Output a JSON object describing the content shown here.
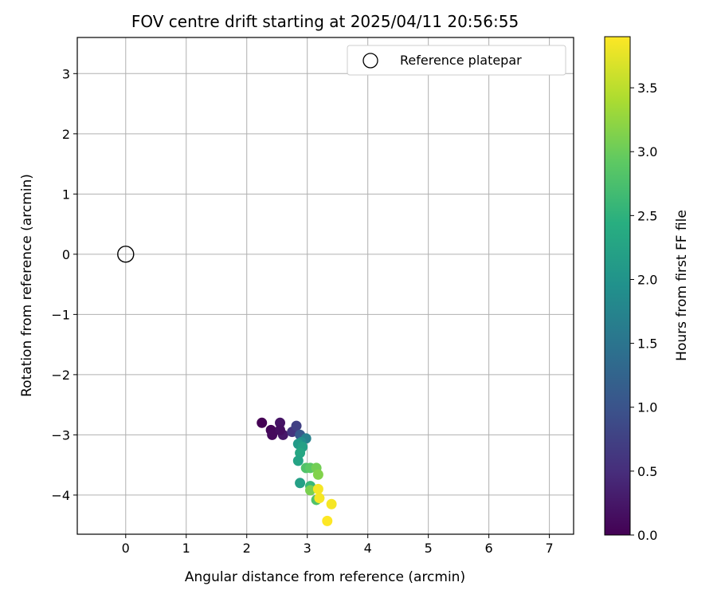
{
  "chart_data": {
    "type": "scatter",
    "title": "FOV centre drift starting at 2025/04/11 20:56:55",
    "xlabel": "Angular distance from reference (arcmin)",
    "ylabel": "Rotation from reference (arcmin)",
    "xlim": [
      -0.8,
      7.4
    ],
    "ylim": [
      -4.65,
      3.6
    ],
    "xticks": [
      "0",
      "1",
      "2",
      "3",
      "4",
      "5",
      "6",
      "7"
    ],
    "yticks": [
      "−4",
      "−3",
      "−2",
      "−1",
      "0",
      "1",
      "2",
      "3"
    ],
    "grid": true,
    "legend": {
      "position": "top-right",
      "label": "Reference platepar"
    },
    "reference_point": {
      "x": 0,
      "y": 0
    },
    "colorbar": {
      "label": "Hours from first FF file",
      "range": [
        0.0,
        3.9
      ],
      "ticks": [
        "0.0",
        "0.5",
        "1.0",
        "1.5",
        "2.0",
        "2.5",
        "3.0",
        "3.5"
      ],
      "colormap": "viridis"
    },
    "series": [
      {
        "points": [
          {
            "x": 2.25,
            "y": -2.8,
            "c": 0.0
          },
          {
            "x": 2.4,
            "y": -2.92,
            "c": 0.05
          },
          {
            "x": 2.42,
            "y": -3.0,
            "c": 0.1
          },
          {
            "x": 2.55,
            "y": -2.8,
            "c": 0.2
          },
          {
            "x": 2.6,
            "y": -3.0,
            "c": 0.25
          },
          {
            "x": 2.55,
            "y": -2.92,
            "c": 0.15
          },
          {
            "x": 2.75,
            "y": -2.95,
            "c": 0.6
          },
          {
            "x": 2.82,
            "y": -2.85,
            "c": 0.75
          },
          {
            "x": 2.88,
            "y": -3.0,
            "c": 1.1
          },
          {
            "x": 2.98,
            "y": -3.06,
            "c": 1.7
          },
          {
            "x": 2.9,
            "y": -3.12,
            "c": 1.9
          },
          {
            "x": 2.85,
            "y": -3.15,
            "c": 2.1
          },
          {
            "x": 2.92,
            "y": -3.2,
            "c": 2.2
          },
          {
            "x": 2.88,
            "y": -3.3,
            "c": 2.3
          },
          {
            "x": 2.85,
            "y": -3.43,
            "c": 2.25
          },
          {
            "x": 2.98,
            "y": -3.55,
            "c": 2.8
          },
          {
            "x": 3.05,
            "y": -3.55,
            "c": 2.9
          },
          {
            "x": 3.15,
            "y": -3.55,
            "c": 3.05
          },
          {
            "x": 3.18,
            "y": -3.66,
            "c": 3.15
          },
          {
            "x": 2.88,
            "y": -3.8,
            "c": 2.2
          },
          {
            "x": 3.05,
            "y": -3.85,
            "c": 2.6
          },
          {
            "x": 3.05,
            "y": -3.92,
            "c": 3.1
          },
          {
            "x": 3.18,
            "y": -3.9,
            "c": 3.85
          },
          {
            "x": 3.15,
            "y": -4.08,
            "c": 2.8
          },
          {
            "x": 3.2,
            "y": -4.05,
            "c": 3.85
          },
          {
            "x": 3.4,
            "y": -4.15,
            "c": 3.85
          },
          {
            "x": 3.33,
            "y": -4.43,
            "c": 3.9
          }
        ]
      }
    ]
  }
}
